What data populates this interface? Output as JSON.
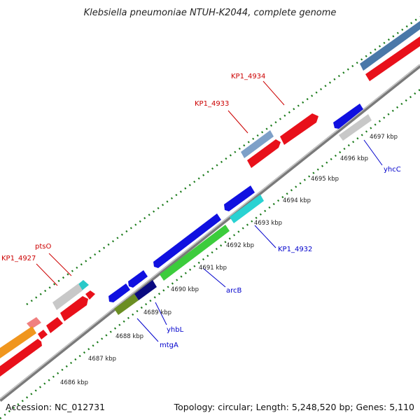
{
  "title": "Klebsiella pneumoniae NTUH-K2044, complete genome",
  "footer": {
    "accession": "Accession: NC_012731",
    "topology": "Topology: circular; Length: 5,248,520 bp; Genes: 5,110"
  },
  "ticks": [
    {
      "kbp": 4686,
      "label": "4686 kbp"
    },
    {
      "kbp": 4687,
      "label": "4687 kbp"
    },
    {
      "kbp": 4688,
      "label": "4688 kbp"
    },
    {
      "kbp": 4689,
      "label": "4689 kbp"
    },
    {
      "kbp": 4690,
      "label": "4690 kbp"
    },
    {
      "kbp": 4691,
      "label": "4691 kbp"
    },
    {
      "kbp": 4692,
      "label": "4692 kbp"
    },
    {
      "kbp": 4693,
      "label": "4693 kbp"
    },
    {
      "kbp": 4694,
      "label": "4694 kbp"
    },
    {
      "kbp": 4695,
      "label": "4695 kbp"
    },
    {
      "kbp": 4696,
      "label": "4696 kbp"
    },
    {
      "kbp": 4697,
      "label": "4697 kbp"
    }
  ],
  "gene_labels": [
    {
      "text": "KP1_4934",
      "color": "#cc0000"
    },
    {
      "text": "KP1_4933",
      "color": "#cc0000"
    },
    {
      "text": "ptsO",
      "color": "#cc0000"
    },
    {
      "text": "KP1_4927",
      "color": "#cc0000"
    },
    {
      "text": "yhcC",
      "color": "#0000cc"
    },
    {
      "text": "KP1_4932",
      "color": "#0000cc"
    },
    {
      "text": "arcB",
      "color": "#0000cc"
    },
    {
      "text": "yhbL",
      "color": "#0000cc"
    },
    {
      "text": "mtgA",
      "color": "#0000cc"
    }
  ],
  "colors": {
    "backbone": "#888888",
    "ticks": "#1a7a1a",
    "forward_label": "#cc0000",
    "reverse_label": "#0000cc"
  }
}
